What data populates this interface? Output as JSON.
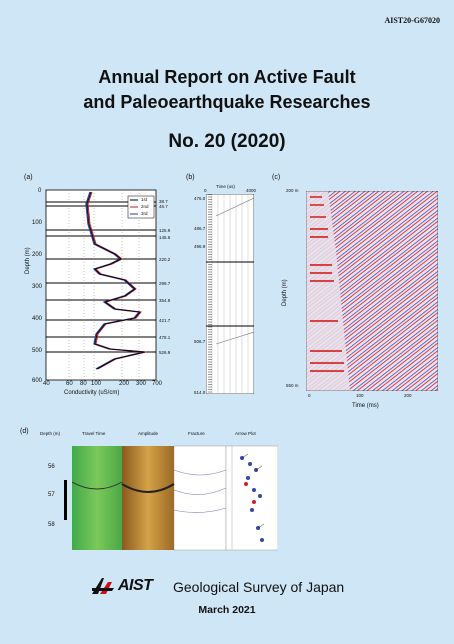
{
  "report_code": "AIST20-G67020",
  "title_line1": "Annual Report on Active Fault",
  "title_line2": "and Paleoearthquake Researches",
  "volume": "No. 20 (2020)",
  "panels": {
    "a": {
      "label": "(a)",
      "ylabel": "Depth (m)",
      "xlabel": "Conductivity (uS/cm)",
      "yticks": [
        "0",
        "100",
        "200",
        "300",
        "400",
        "500",
        "600"
      ],
      "xticks": [
        "40",
        "60",
        "80",
        "100",
        "200",
        "300",
        "500",
        "700"
      ],
      "legend": [
        "1st",
        "2nd",
        "3rd"
      ],
      "depth_labels": [
        "38.7",
        "46.7",
        "125.9",
        "145.6",
        "220.2",
        "299.7",
        "354.9",
        "421.7",
        "478.1",
        "526.9"
      ]
    },
    "b": {
      "label": "(b)",
      "xlabel": "Time (us)",
      "xticks": [
        "0",
        "4000"
      ],
      "depth_labels": [
        "476.0",
        "486.7",
        "496.9",
        "506.7",
        "514.0"
      ]
    },
    "c": {
      "label": "(c)",
      "ylabel": "Depth (m)",
      "xlabel": "Time (ms)",
      "top_depth": "200 m",
      "bottom_depth": "550 m",
      "xticks": [
        "0",
        "100",
        "200"
      ]
    },
    "d": {
      "label": "(d)",
      "depth_header": "Depth (m)",
      "columns": [
        "Travel Time",
        "Amplitude",
        "Fracture",
        "Arrow Plot"
      ],
      "depths": [
        "56",
        "57",
        "58"
      ]
    }
  },
  "publisher": "Geological Survey of Japan",
  "aist_logo_text": "AIST",
  "date": "March 2021"
}
